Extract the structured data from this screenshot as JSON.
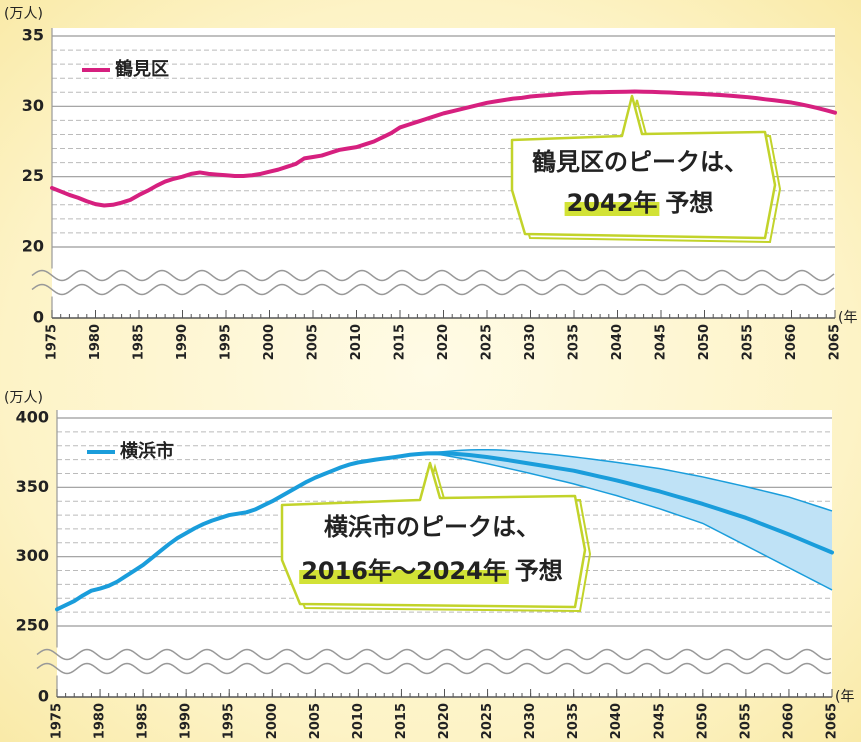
{
  "chart_data": [
    {
      "type": "line",
      "y_unit": "(万人)",
      "x_unit": "(年",
      "x": [
        1975,
        1976,
        1977,
        1978,
        1979,
        1980,
        1981,
        1982,
        1983,
        1984,
        1985,
        1986,
        1987,
        1988,
        1989,
        1990,
        1991,
        1992,
        1993,
        1994,
        1995,
        1996,
        1997,
        1998,
        1999,
        2000,
        2001,
        2002,
        2003,
        2004,
        2005,
        2006,
        2007,
        2008,
        2009,
        2010,
        2011,
        2012,
        2013,
        2014,
        2015,
        2016,
        2017,
        2018,
        2019,
        2020,
        2021,
        2022,
        2023,
        2024,
        2025,
        2026,
        2027,
        2028,
        2029,
        2030,
        2031,
        2032,
        2033,
        2034,
        2035,
        2036,
        2037,
        2038,
        2039,
        2040,
        2041,
        2042,
        2043,
        2044,
        2045,
        2046,
        2047,
        2048,
        2049,
        2050,
        2051,
        2052,
        2053,
        2054,
        2055,
        2056,
        2057,
        2058,
        2059,
        2060,
        2061,
        2062,
        2063,
        2064,
        2065
      ],
      "series": [
        {
          "name": "鶴見区",
          "color": "#d6207f",
          "values": [
            24.2,
            23.95,
            23.7,
            23.5,
            23.25,
            23.05,
            22.95,
            23.0,
            23.15,
            23.35,
            23.7,
            24.0,
            24.35,
            24.65,
            24.85,
            25.0,
            25.2,
            25.3,
            25.2,
            25.15,
            25.1,
            25.05,
            25.05,
            25.1,
            25.2,
            25.35,
            25.5,
            25.7,
            25.9,
            26.3,
            26.4,
            26.5,
            26.7,
            26.9,
            27.0,
            27.1,
            27.3,
            27.5,
            27.8,
            28.1,
            28.5,
            28.7,
            28.9,
            29.1,
            29.3,
            29.5,
            29.65,
            29.8,
            29.95,
            30.1,
            30.25,
            30.35,
            30.45,
            30.55,
            30.6,
            30.7,
            30.75,
            30.8,
            30.85,
            30.9,
            30.95,
            30.97,
            31.0,
            31.0,
            31.02,
            31.03,
            31.04,
            31.05,
            31.04,
            31.03,
            31.0,
            30.98,
            30.95,
            30.92,
            30.9,
            30.87,
            30.83,
            30.8,
            30.75,
            30.7,
            30.65,
            30.58,
            30.5,
            30.43,
            30.35,
            30.27,
            30.15,
            30.02,
            29.88,
            29.72,
            29.55
          ]
        }
      ],
      "xlim": [
        1975,
        2065
      ],
      "xticks": [
        1975,
        1980,
        1985,
        1990,
        1995,
        2000,
        2005,
        2010,
        2015,
        2020,
        2025,
        2030,
        2035,
        2040,
        2045,
        2050,
        2055,
        2060,
        2065
      ],
      "ylim": [
        0,
        35
      ],
      "yticks": [
        0,
        20,
        25,
        30,
        35
      ],
      "axis_break": [
        0,
        20
      ],
      "grid": true,
      "annotation": [
        "鶴見区のピークは、",
        "2042年",
        "予想"
      ],
      "highlight_color": "#d2e236"
    },
    {
      "type": "line",
      "y_unit": "(万人)",
      "x_unit": "(年",
      "x": [
        1975,
        1976,
        1977,
        1978,
        1979,
        1980,
        1981,
        1982,
        1983,
        1984,
        1985,
        1986,
        1987,
        1988,
        1989,
        1990,
        1991,
        1992,
        1993,
        1994,
        1995,
        1996,
        1997,
        1998,
        1999,
        2000,
        2001,
        2002,
        2003,
        2004,
        2005,
        2006,
        2007,
        2008,
        2009,
        2010,
        2011,
        2012,
        2013,
        2014,
        2015,
        2016,
        2017,
        2018,
        2019,
        2020,
        2021,
        2022,
        2023,
        2024,
        2025,
        2026,
        2027,
        2028,
        2029,
        2030,
        2031,
        2032,
        2033,
        2034,
        2035,
        2036,
        2037,
        2038,
        2039,
        2040,
        2041,
        2042,
        2043,
        2044,
        2045,
        2046,
        2047,
        2048,
        2049,
        2050,
        2051,
        2052,
        2053,
        2054,
        2055,
        2056,
        2057,
        2058,
        2059,
        2060,
        2061,
        2062,
        2063,
        2064,
        2065
      ],
      "series": [
        {
          "name": "横浜市",
          "color": "#1a9ddb",
          "values": [
            262,
            265,
            268,
            272,
            275.5,
            277,
            279,
            282,
            286,
            290,
            294,
            299,
            304,
            309,
            313.5,
            317,
            320.5,
            323.5,
            326,
            328,
            330,
            331,
            332,
            334,
            337,
            340,
            343.5,
            347,
            350.5,
            354,
            357,
            359.5,
            362,
            364.5,
            366.5,
            368,
            369,
            370,
            370.8,
            371.6,
            372.5,
            373.5,
            374,
            374.5,
            374.6,
            374.5,
            374.2,
            373.8,
            373.2,
            372.5,
            371.8,
            370.9,
            370.0,
            369.0,
            368.0,
            367.0,
            366.0,
            365.0,
            364.0,
            363.0,
            362.0,
            360.6,
            359.2,
            357.8,
            356.4,
            355.0,
            353.4,
            351.8,
            350.2,
            348.6,
            347.0,
            345.2,
            343.4,
            341.6,
            339.8,
            338.0,
            336.0,
            334.0,
            332.0,
            330.0,
            328.0,
            325.6,
            323.2,
            320.8,
            318.4,
            316.0,
            313.4,
            310.8,
            308.2,
            305.6,
            303.0
          ]
        }
      ],
      "band": {
        "color": "#bfe2f6",
        "line_color": "#1a9ddb",
        "upper": [
          null,
          null,
          null,
          null,
          null,
          null,
          null,
          null,
          null,
          null,
          null,
          null,
          null,
          null,
          null,
          null,
          null,
          null,
          null,
          null,
          null,
          null,
          null,
          null,
          null,
          null,
          null,
          null,
          null,
          null,
          null,
          null,
          null,
          null,
          null,
          null,
          null,
          null,
          null,
          null,
          null,
          null,
          null,
          374.5,
          375.2,
          375.8,
          376.3,
          376.7,
          377,
          377.1,
          377.1,
          377,
          376.7,
          376.3,
          375.8,
          375.2,
          374.6,
          374,
          373.4,
          372.7,
          372,
          371.2,
          370.4,
          369.6,
          368.8,
          368,
          367.1,
          366.2,
          365.3,
          364.4,
          363.5,
          362.3,
          361.1,
          359.9,
          358.7,
          357.5,
          356.1,
          354.7,
          353.3,
          351.9,
          350.5,
          349,
          347.5,
          346,
          344.5,
          343,
          341,
          339,
          337,
          335,
          333
        ],
        "lower": [
          null,
          null,
          null,
          null,
          null,
          null,
          null,
          null,
          null,
          null,
          null,
          null,
          null,
          null,
          null,
          null,
          null,
          null,
          null,
          null,
          null,
          null,
          null,
          null,
          null,
          null,
          null,
          null,
          null,
          null,
          null,
          null,
          null,
          null,
          null,
          null,
          null,
          null,
          null,
          null,
          null,
          null,
          null,
          374.5,
          374,
          373,
          372,
          370.8,
          369.6,
          368.3,
          367,
          365.6,
          364.2,
          362.8,
          361.4,
          360,
          358.5,
          357,
          355.5,
          354,
          352.5,
          350.8,
          349.1,
          347.4,
          345.7,
          344,
          342.1,
          340.2,
          338.3,
          336.4,
          334.5,
          332.4,
          330.3,
          328.2,
          326.1,
          324,
          320.8,
          317.6,
          314.4,
          311.2,
          308,
          304.8,
          301.6,
          298.4,
          295.2,
          292,
          288.8,
          285.6,
          282.4,
          279.2,
          276
        ]
      },
      "xlim": [
        1975,
        2065
      ],
      "xticks": [
        1975,
        1980,
        1985,
        1990,
        1995,
        2000,
        2005,
        2010,
        2015,
        2020,
        2025,
        2030,
        2035,
        2040,
        2045,
        2050,
        2055,
        2060,
        2065
      ],
      "ylim": [
        0,
        400
      ],
      "yticks": [
        0,
        250,
        300,
        350,
        400
      ],
      "axis_break": [
        0,
        250
      ],
      "grid": true,
      "annotation": [
        "横浜市のピークは、",
        "2016年〜2024年",
        "予想"
      ],
      "highlight_color": "#d2e236"
    }
  ]
}
